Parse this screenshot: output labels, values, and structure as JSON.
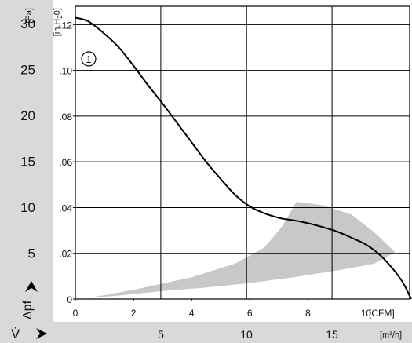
{
  "chart_data": {
    "type": "line",
    "title": "",
    "curve_label": "1",
    "y_axis_pa": {
      "unit": "[Pa]",
      "ticks": [
        "30",
        "25",
        "20",
        "15",
        "10",
        "5"
      ],
      "values": [
        30,
        25,
        20,
        15,
        10,
        5
      ]
    },
    "y_axis_inh2o": {
      "unit": "[in.H2O]",
      "ticks": [
        ".12",
        ".10",
        ".08",
        ".06",
        ".04",
        ".02",
        "0"
      ],
      "values": [
        0.12,
        0.1,
        0.08,
        0.06,
        0.04,
        0.02,
        0
      ]
    },
    "y_axis_symbol": "Δpf",
    "x_axis_cfm": {
      "unit": "[CFM]",
      "ticks": [
        "0",
        "2",
        "4",
        "6",
        "8",
        "10"
      ],
      "values": [
        0,
        2,
        4,
        6,
        8,
        10
      ],
      "range": [
        0,
        11.5
      ]
    },
    "x_axis_m3h": {
      "unit": "[m³/h]",
      "ticks": [
        "5",
        "10",
        "15"
      ],
      "values": [
        5,
        10,
        15
      ]
    },
    "x_axis_symbol": "V̇",
    "ylim_inh2o": [
      0,
      0.128
    ],
    "grid_x_cfm": [
      2.94,
      5.89,
      8.83
    ],
    "grid_y_inh2o": [
      0.02,
      0.04,
      0.06,
      0.08,
      0.1,
      0.12
    ],
    "series": [
      {
        "name": "1",
        "x": [
          0,
          0.2,
          0.5,
          1.0,
          1.5,
          2.0,
          2.5,
          3.0,
          3.5,
          4.0,
          4.5,
          5.0,
          5.5,
          6.0,
          6.5,
          7.0,
          7.3,
          7.6,
          8.0,
          8.5,
          9.0,
          9.5,
          10.0,
          10.5,
          11.0,
          11.3,
          11.55
        ],
        "y": [
          0.123,
          0.1225,
          0.121,
          0.116,
          0.11,
          0.102,
          0.0935,
          0.0855,
          0.077,
          0.0685,
          0.06,
          0.0525,
          0.0455,
          0.0405,
          0.0375,
          0.0355,
          0.0348,
          0.0342,
          0.0332,
          0.0315,
          0.0295,
          0.0268,
          0.0238,
          0.019,
          0.012,
          0.0065,
          0.0
        ]
      }
    ],
    "operating_region": {
      "x": [
        0.45,
        2.0,
        4.0,
        5.5,
        6.5,
        7.1,
        7.6,
        8.5,
        9.5,
        10.3,
        11.0,
        10.3,
        9.0,
        7.5,
        6.0,
        4.5,
        3.0,
        1.5,
        0.45
      ],
      "y": [
        0.0005,
        0.004,
        0.0095,
        0.0155,
        0.0225,
        0.0315,
        0.0425,
        0.041,
        0.037,
        0.029,
        0.0205,
        0.0155,
        0.0125,
        0.0095,
        0.007,
        0.005,
        0.0035,
        0.0015,
        0.0005
      ]
    },
    "colors": {
      "side_band": "#d9d9d9",
      "region_fill": "#c8c8c8",
      "curve": "#000000",
      "grid": "#000000"
    }
  }
}
